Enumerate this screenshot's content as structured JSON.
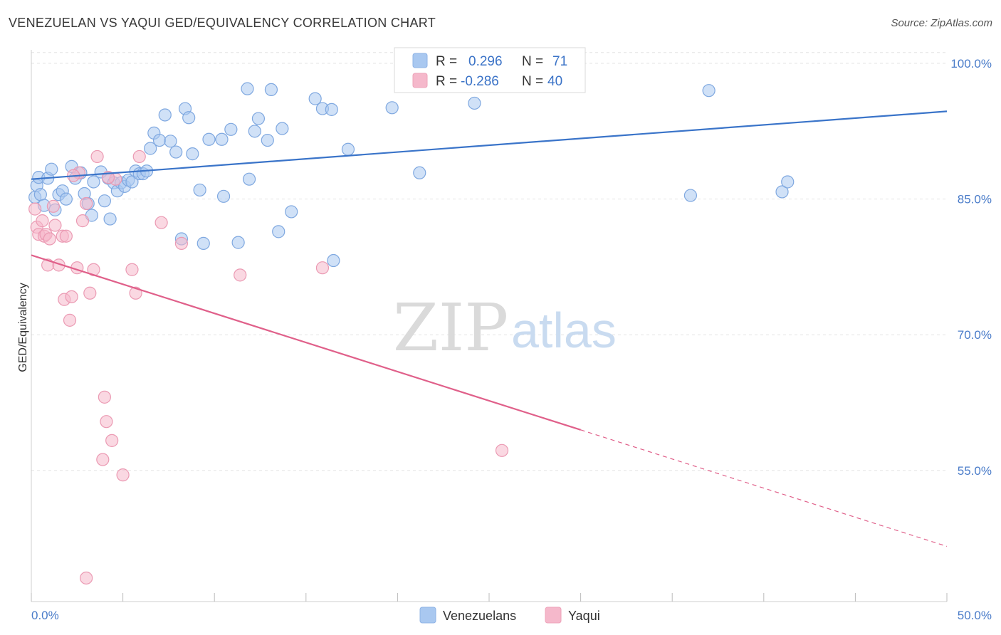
{
  "title": "VENEZUELAN VS YAQUI GED/EQUIVALENCY CORRELATION CHART",
  "source": "Source: ZipAtlas.com",
  "watermark": {
    "zip": "ZIP",
    "atlas": "atlas"
  },
  "legend": {
    "rows": [
      {
        "r_label": "R =",
        "r_value": "0.296",
        "n_label": "N =",
        "n_value": "71",
        "color": "#a9c8f0"
      },
      {
        "r_label": "R =",
        "r_value": "-0.286",
        "n_label": "N =",
        "n_value": "40",
        "color": "#f5b8cb"
      }
    ]
  },
  "bottom_legend": [
    {
      "label": "Venezuelans",
      "color": "#a9c8f0"
    },
    {
      "label": "Yaqui",
      "color": "#f5b8cb"
    }
  ],
  "colors": {
    "blue": "#3a74c9",
    "blue_fill": "#a9c8f0",
    "pink": "#e0608a",
    "pink_fill": "#f5b8cb",
    "grid": "#e3e3e3"
  },
  "chart_data": {
    "type": "scatter",
    "title": "VENEZUELAN VS YAQUI GED/EQUIVALENCY CORRELATION CHART",
    "xlabel": "",
    "ylabel": "GED/Equivalency",
    "xlim": [
      0,
      50
    ],
    "ylim": [
      40.5,
      101.5
    ],
    "x_tick_labels": [
      "0.0%",
      "50.0%"
    ],
    "y_ticks": [
      55,
      70,
      85,
      100
    ],
    "y_tick_labels": [
      "55.0%",
      "70.0%",
      "85.0%",
      "100.0%"
    ],
    "grid": true,
    "legend_position": "top-center",
    "series": [
      {
        "name": "Venezuelans",
        "r": 0.296,
        "n": 71,
        "trend": {
          "x": [
            0,
            50
          ],
          "y": [
            87.2,
            94.7
          ],
          "dashed_from": null
        },
        "points": [
          [
            0.2,
            85.2
          ],
          [
            0.3,
            86.5
          ],
          [
            0.4,
            87.4
          ],
          [
            0.5,
            85.5
          ],
          [
            0.7,
            84.3
          ],
          [
            0.9,
            87.3
          ],
          [
            1.1,
            88.3
          ],
          [
            1.3,
            83.8
          ],
          [
            1.5,
            85.5
          ],
          [
            1.7,
            85.9
          ],
          [
            1.9,
            85.0
          ],
          [
            2.2,
            88.6
          ],
          [
            2.4,
            87.3
          ],
          [
            2.7,
            87.9
          ],
          [
            2.9,
            85.6
          ],
          [
            3.1,
            84.5
          ],
          [
            3.3,
            83.2
          ],
          [
            3.4,
            86.9
          ],
          [
            3.8,
            88.0
          ],
          [
            4.0,
            84.8
          ],
          [
            4.2,
            87.3
          ],
          [
            4.3,
            82.8
          ],
          [
            4.5,
            86.8
          ],
          [
            4.7,
            85.9
          ],
          [
            4.9,
            86.8
          ],
          [
            5.1,
            86.4
          ],
          [
            5.3,
            87.1
          ],
          [
            5.5,
            86.9
          ],
          [
            5.7,
            88.1
          ],
          [
            5.9,
            87.8
          ],
          [
            6.1,
            87.8
          ],
          [
            6.3,
            88.1
          ],
          [
            6.5,
            90.6
          ],
          [
            6.7,
            92.3
          ],
          [
            7.0,
            91.5
          ],
          [
            7.3,
            94.3
          ],
          [
            7.6,
            91.4
          ],
          [
            7.9,
            90.2
          ],
          [
            8.2,
            80.6
          ],
          [
            8.4,
            95.0
          ],
          [
            8.6,
            94.0
          ],
          [
            8.8,
            90.0
          ],
          [
            9.2,
            86.0
          ],
          [
            9.4,
            80.1
          ],
          [
            9.7,
            91.6
          ],
          [
            10.4,
            91.6
          ],
          [
            10.5,
            85.3
          ],
          [
            10.9,
            92.7
          ],
          [
            11.3,
            80.2
          ],
          [
            11.8,
            97.2
          ],
          [
            11.9,
            87.2
          ],
          [
            12.2,
            92.5
          ],
          [
            12.4,
            93.9
          ],
          [
            12.9,
            91.5
          ],
          [
            13.1,
            97.1
          ],
          [
            13.5,
            81.4
          ],
          [
            13.7,
            92.8
          ],
          [
            14.2,
            83.6
          ],
          [
            15.5,
            96.1
          ],
          [
            15.9,
            95.0
          ],
          [
            16.4,
            94.9
          ],
          [
            16.5,
            78.2
          ],
          [
            17.3,
            90.5
          ],
          [
            19.7,
            95.1
          ],
          [
            21.2,
            87.9
          ],
          [
            22.3,
            100.0
          ],
          [
            24.2,
            95.6
          ],
          [
            36.0,
            85.4
          ],
          [
            37.0,
            97.0
          ],
          [
            41.0,
            85.8
          ],
          [
            41.3,
            86.9
          ]
        ]
      },
      {
        "name": "Yaqui",
        "r": -0.286,
        "n": 40,
        "trend": {
          "x": [
            0,
            50
          ],
          "y": [
            78.8,
            46.6
          ],
          "dashed_from": 30
        },
        "points": [
          [
            0.2,
            83.9
          ],
          [
            0.3,
            81.9
          ],
          [
            0.4,
            81.1
          ],
          [
            0.6,
            82.6
          ],
          [
            0.7,
            80.9
          ],
          [
            0.8,
            81.1
          ],
          [
            0.9,
            77.7
          ],
          [
            1.0,
            80.6
          ],
          [
            1.3,
            82.1
          ],
          [
            1.5,
            77.7
          ],
          [
            1.7,
            80.9
          ],
          [
            1.8,
            73.9
          ],
          [
            1.9,
            80.9
          ],
          [
            2.1,
            71.6
          ],
          [
            2.2,
            74.2
          ],
          [
            2.5,
            77.4
          ],
          [
            2.6,
            87.9
          ],
          [
            2.8,
            82.6
          ],
          [
            3.0,
            84.5
          ],
          [
            3.0,
            43.1
          ],
          [
            3.2,
            74.6
          ],
          [
            3.4,
            77.2
          ],
          [
            3.6,
            89.7
          ],
          [
            3.9,
            56.2
          ],
          [
            4.0,
            63.1
          ],
          [
            4.1,
            60.4
          ],
          [
            4.4,
            58.3
          ],
          [
            4.6,
            87.2
          ],
          [
            5.0,
            54.5
          ],
          [
            5.5,
            77.2
          ],
          [
            5.7,
            74.6
          ],
          [
            5.9,
            89.7
          ],
          [
            7.1,
            82.4
          ],
          [
            8.2,
            80.1
          ],
          [
            11.4,
            76.6
          ],
          [
            15.9,
            77.4
          ],
          [
            25.7,
            57.2
          ],
          [
            1.2,
            84.2
          ],
          [
            2.3,
            87.6
          ],
          [
            4.2,
            87.4
          ]
        ]
      }
    ]
  }
}
